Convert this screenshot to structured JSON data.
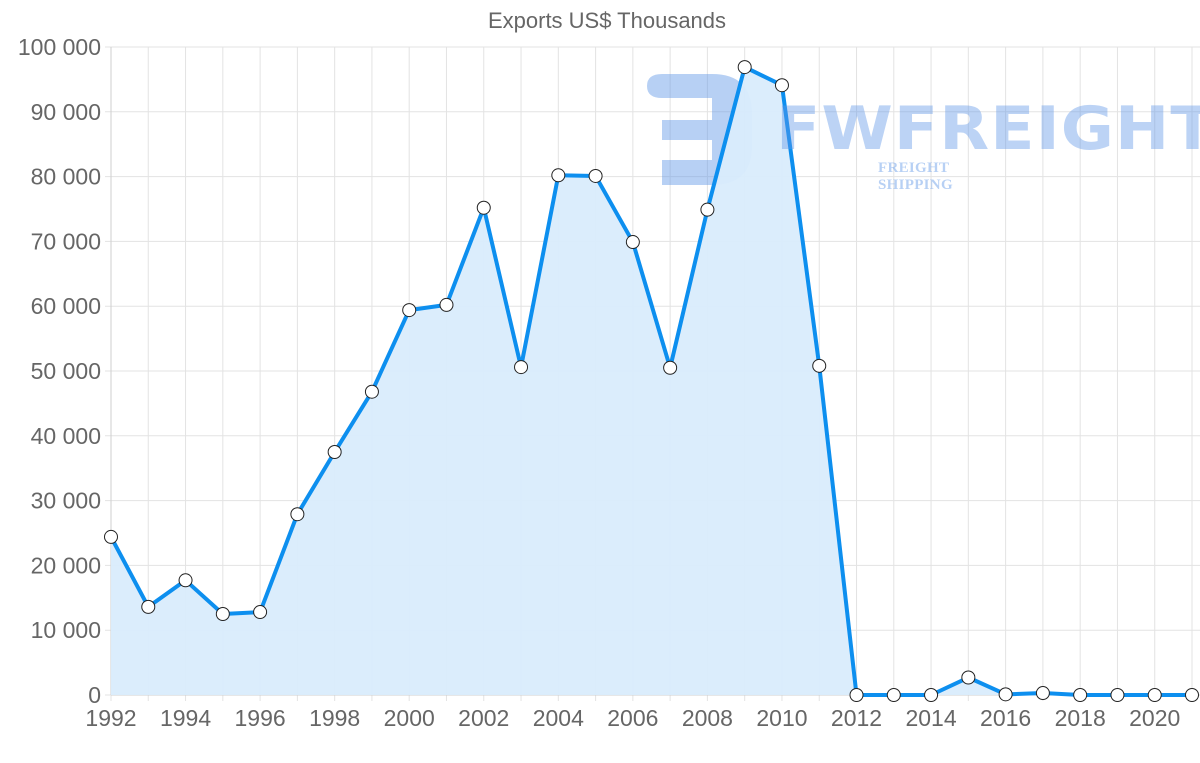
{
  "chart_data": {
    "type": "line",
    "title": "Exports US$ Thousands",
    "xlabel": "",
    "ylabel": "",
    "x": [
      1992,
      1993,
      1994,
      1995,
      1996,
      1997,
      1998,
      1999,
      2000,
      2001,
      2002,
      2003,
      2004,
      2005,
      2006,
      2007,
      2008,
      2009,
      2010,
      2011,
      2012,
      2013,
      2014,
      2015,
      2016,
      2017,
      2018,
      2019,
      2020,
      2021
    ],
    "series": [
      {
        "name": "Exports US$ Thousands",
        "values": [
          24400,
          13600,
          17700,
          12500,
          12800,
          27900,
          37500,
          46800,
          59400,
          60200,
          75200,
          50600,
          80200,
          80100,
          69900,
          50500,
          74900,
          96900,
          94100,
          50800,
          0,
          0,
          0,
          2700,
          100,
          300,
          0,
          0,
          0,
          0
        ],
        "color": "#0d8fef",
        "fill": "#d9ecfc",
        "area": true
      }
    ],
    "ylim": [
      0,
      100000
    ],
    "yticks": [
      0,
      10000,
      20000,
      30000,
      40000,
      50000,
      60000,
      70000,
      80000,
      90000,
      100000
    ],
    "ytick_labels": [
      "0",
      "10 000",
      "20 000",
      "30 000",
      "40 000",
      "50 000",
      "60 000",
      "70 000",
      "80 000",
      "90 000",
      "100 000"
    ],
    "xtick_labels": [
      "1992",
      "1994",
      "1996",
      "1998",
      "2000",
      "2002",
      "2004",
      "2006",
      "2008",
      "2010",
      "2012",
      "2014",
      "2016",
      "2018",
      "2020"
    ],
    "grid": true,
    "legend": "none"
  },
  "watermark": {
    "brand": "FWFREIGHT",
    "tagline": "FREIGHT SHIPPING"
  },
  "colors": {
    "line": "#0d8fef",
    "area": "#d9ecfc",
    "grid": "#e3e3e3",
    "axis_text": "#666666",
    "watermark": "#6096e6"
  }
}
